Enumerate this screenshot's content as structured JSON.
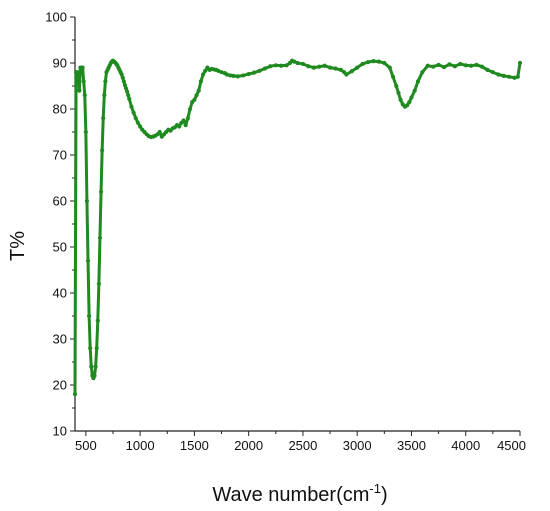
{
  "chart_data": {
    "type": "line",
    "xlabel": "Wave number(cm",
    "xlabel_superscript": "-1",
    "xlabel_suffix": ")",
    "ylabel": "T%",
    "xlim": [
      400,
      4500
    ],
    "ylim": [
      10,
      100
    ],
    "x_ticks": [
      500,
      1000,
      1500,
      2000,
      2500,
      3000,
      3500,
      4000,
      4500
    ],
    "y_ticks": [
      10,
      20,
      30,
      40,
      50,
      60,
      70,
      80,
      90,
      100
    ],
    "grid": false,
    "colors": {
      "series": "#1f8a1f",
      "axis": "#222222"
    },
    "series": [
      {
        "x": [
          400,
          410,
          420,
          430,
          440,
          450,
          460,
          470,
          480,
          490,
          500,
          510,
          520,
          530,
          540,
          550,
          560,
          570,
          580,
          590,
          600,
          610,
          620,
          630,
          640,
          650,
          660,
          670,
          680,
          690,
          700,
          710,
          720,
          730,
          740,
          750,
          760,
          770,
          780,
          790,
          800,
          810,
          820,
          830,
          840,
          850,
          860,
          870,
          880,
          890,
          900,
          920,
          940,
          960,
          980,
          1000,
          1020,
          1040,
          1060,
          1080,
          1100,
          1120,
          1140,
          1160,
          1180,
          1200,
          1220,
          1240,
          1260,
          1280,
          1300,
          1320,
          1340,
          1360,
          1380,
          1400,
          1420,
          1440,
          1460,
          1480,
          1500,
          1520,
          1540,
          1560,
          1580,
          1600,
          1620,
          1640,
          1660,
          1680,
          1700,
          1720,
          1750,
          1780,
          1800,
          1830,
          1860,
          1900,
          1950,
          2000,
          2050,
          2100,
          2150,
          2200,
          2250,
          2300,
          2350,
          2380,
          2400,
          2420,
          2450,
          2500,
          2550,
          2600,
          2650,
          2700,
          2750,
          2800,
          2850,
          2880,
          2900,
          2950,
          3000,
          3050,
          3100,
          3150,
          3200,
          3250,
          3300,
          3330,
          3360,
          3380,
          3400,
          3420,
          3440,
          3460,
          3480,
          3500,
          3530,
          3560,
          3600,
          3650,
          3700,
          3750,
          3800,
          3850,
          3900,
          3950,
          4000,
          4050,
          4100,
          4150,
          4200,
          4250,
          4300,
          4350,
          4400,
          4450,
          4480,
          4500
        ],
        "y": [
          18,
          88,
          86,
          88,
          84,
          89,
          88,
          89,
          86,
          83,
          75,
          60,
          47,
          35,
          28,
          24,
          22,
          21.5,
          22,
          24,
          28,
          34,
          42,
          52,
          62,
          71,
          78,
          83,
          86,
          88,
          88.5,
          89,
          89.5,
          90,
          90.3,
          90.5,
          90.3,
          90.1,
          89.8,
          89.5,
          89,
          88.5,
          88,
          87.5,
          86.8,
          86,
          85.2,
          84.5,
          83.8,
          83,
          82.2,
          80.5,
          79.2,
          78,
          77,
          76.2,
          75.5,
          75,
          74.5,
          74.1,
          73.9,
          74,
          74.2,
          74.5,
          75,
          74,
          74.5,
          75,
          75.5,
          75.3,
          75.8,
          76,
          76.5,
          76.2,
          77,
          77.5,
          76.5,
          78,
          80,
          81.5,
          82,
          83,
          84,
          86,
          87.5,
          88.3,
          89,
          88.5,
          88.7,
          88.6,
          88.5,
          88.3,
          88,
          87.8,
          87.5,
          87.3,
          87.2,
          87.1,
          87.3,
          87.6,
          87.9,
          88.3,
          88.8,
          89.3,
          89.5,
          89.4,
          89.5,
          90,
          90.5,
          90.3,
          90,
          89.8,
          89.3,
          89,
          89.2,
          89.4,
          89,
          88.8,
          88.5,
          88,
          87.5,
          88.2,
          89,
          89.8,
          90.2,
          90.4,
          90.3,
          90,
          89,
          87,
          85,
          83.5,
          82,
          81,
          80.5,
          80.8,
          81.5,
          82.5,
          84,
          86,
          88,
          89.4,
          89.2,
          89.6,
          89.1,
          89.7,
          89.3,
          89.8,
          89.5,
          89.4,
          89.6,
          89.2,
          88.5,
          88,
          87.5,
          87.2,
          87,
          86.8,
          87,
          90
        ]
      }
    ]
  }
}
